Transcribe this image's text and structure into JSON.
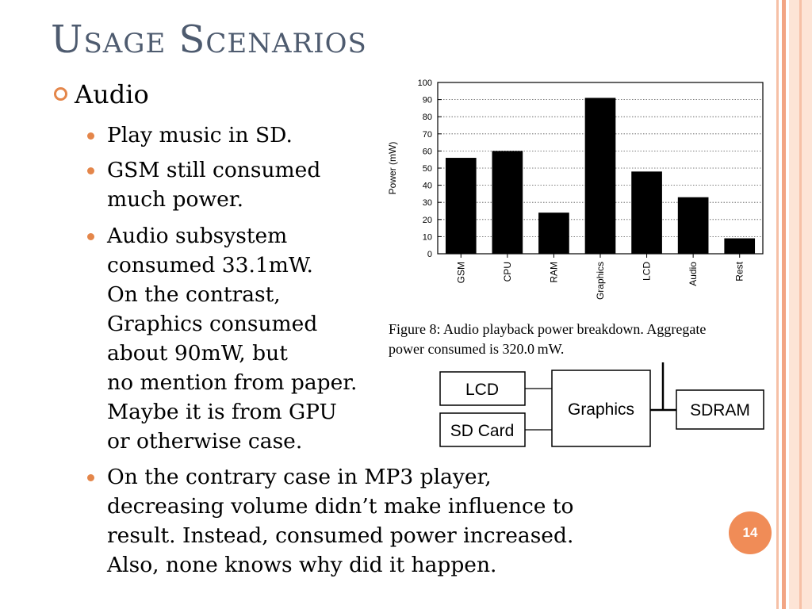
{
  "slide": {
    "title": "Usage Scenarios",
    "bullet1": "Audio",
    "sub_bullets": [
      [
        "Play music in SD."
      ],
      [
        "GSM still consumed",
        "much power."
      ],
      [
        "Audio subsystem",
        "consumed 33.1mW.",
        "On the contrast,",
        "Graphics consumed",
        "about 90mW, but",
        "no mention from paper.",
        "Maybe it is from GPU",
        "or otherwise case."
      ],
      [
        "On the contrary case in MP3 player,",
        "decreasing volume didn’t make influence to",
        "result. Instead, consumed power increased.",
        "Also, none knows why did it happen."
      ]
    ],
    "page_number": "14"
  },
  "figure": {
    "caption_lines": [
      "Figure 8: Audio playback power breakdown. Aggregate",
      "power consumed is 320.0 mW."
    ]
  },
  "diagram": {
    "nodes": {
      "lcd": "LCD",
      "sdcard": "SD Card",
      "graphics": "Graphics",
      "sdram": "SDRAM"
    }
  },
  "colors": {
    "accent": "#e4864a",
    "title": "#4e5b6f",
    "stripe_dark": "#f2a584",
    "stripe_light": "#fde4d6",
    "page_badge": "#f08c57"
  },
  "chart_data": {
    "type": "bar",
    "categories": [
      "GSM",
      "CPU",
      "RAM",
      "Graphics",
      "LCD",
      "Audio",
      "Rest"
    ],
    "values": [
      56,
      60,
      24,
      91,
      48,
      33,
      9
    ],
    "title": "",
    "xlabel": "",
    "ylabel": "Power (mW)",
    "ylim": [
      0,
      100
    ],
    "yticks": [
      0,
      10,
      20,
      30,
      40,
      50,
      60,
      70,
      80,
      90,
      100
    ],
    "grid": true
  }
}
